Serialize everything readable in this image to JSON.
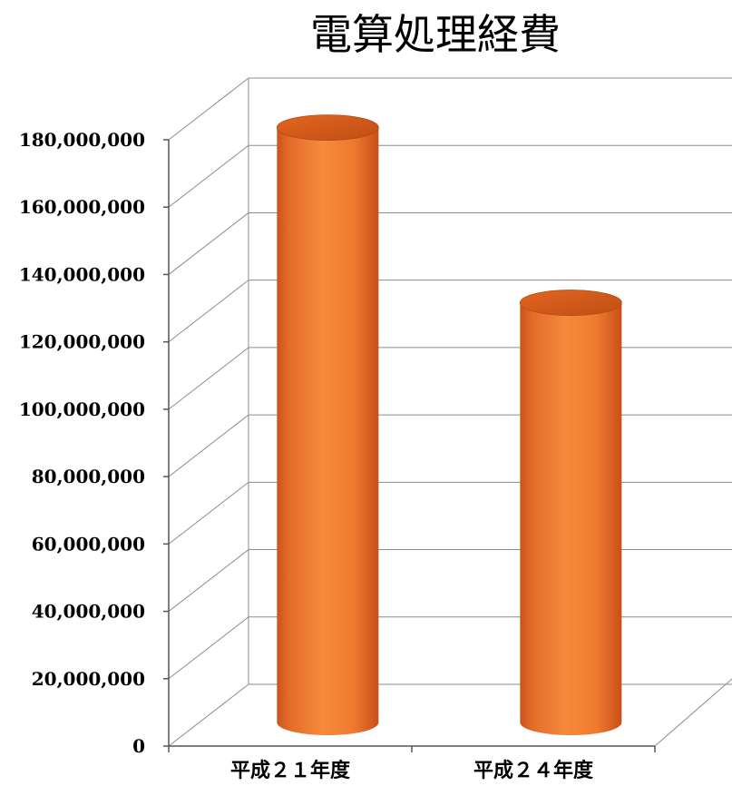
{
  "chart_data": {
    "type": "bar",
    "style": "3d-cylinder",
    "title": "電算処理経費",
    "categories": [
      "平成２１年度",
      "平成２４年度"
    ],
    "values": [
      175000000,
      123000000
    ],
    "bar_color": "#f08030",
    "ylim": [
      0,
      180000000
    ],
    "ytick_step": 20000000,
    "ytick_labels": [
      "0",
      "20,000,000",
      "40,000,000",
      "60,000,000",
      "80,000,000",
      "100,000,000",
      "120,000,000",
      "140,000,000",
      "160,000,000",
      "180,000,000"
    ],
    "grid": true,
    "legend": "none"
  }
}
